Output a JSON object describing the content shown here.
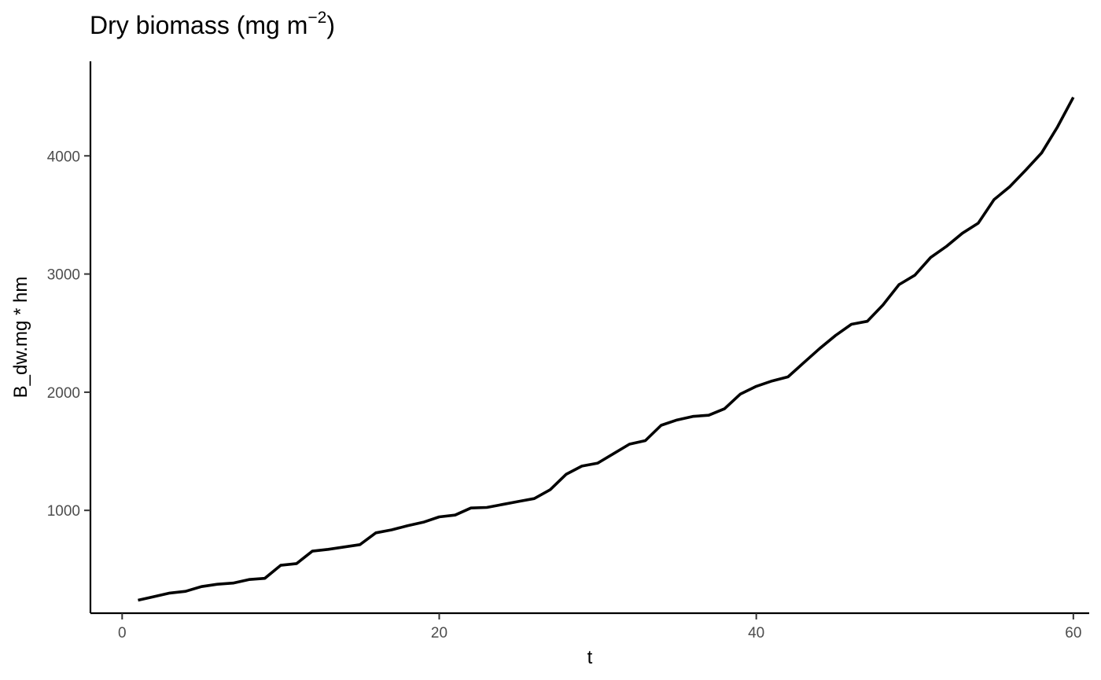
{
  "chart_data": {
    "type": "line",
    "title": {
      "main": "Dry biomass (mg m",
      "superscript": "−2",
      "close": ")"
    },
    "xlabel": "t",
    "ylabel": "B_dw.mg * hm",
    "xlim": [
      -2,
      61
    ],
    "ylim": [
      130,
      4800
    ],
    "xticks": [
      0,
      20,
      40,
      60
    ],
    "yticks": [
      1000,
      2000,
      3000,
      4000
    ],
    "grid": false,
    "line_color": "#000000",
    "series": [
      {
        "x": [
          1,
          2,
          3,
          4,
          5,
          6,
          7,
          8,
          9,
          10,
          11,
          12,
          13,
          14,
          15,
          16,
          17,
          18,
          19,
          20,
          21,
          22,
          23,
          24,
          25,
          26,
          27,
          28,
          29,
          30,
          31,
          32,
          33,
          34,
          35,
          36,
          37,
          38,
          39,
          40,
          41,
          42,
          43,
          44,
          45,
          46,
          47,
          48,
          49,
          50,
          51,
          52,
          53,
          54,
          55,
          56,
          57,
          58,
          59,
          60
        ],
        "values": [
          240,
          270,
          300,
          315,
          355,
          375,
          385,
          415,
          425,
          535,
          550,
          655,
          670,
          690,
          710,
          810,
          835,
          870,
          900,
          945,
          960,
          1020,
          1025,
          1050,
          1075,
          1100,
          1175,
          1305,
          1375,
          1400,
          1480,
          1560,
          1590,
          1720,
          1765,
          1795,
          1805,
          1860,
          1985,
          2050,
          2095,
          2130,
          2250,
          2370,
          2480,
          2575,
          2600,
          2740,
          2910,
          2990,
          3140,
          3235,
          3345,
          3430,
          3630,
          3740,
          3880,
          4025,
          4245,
          4495
        ]
      }
    ]
  }
}
